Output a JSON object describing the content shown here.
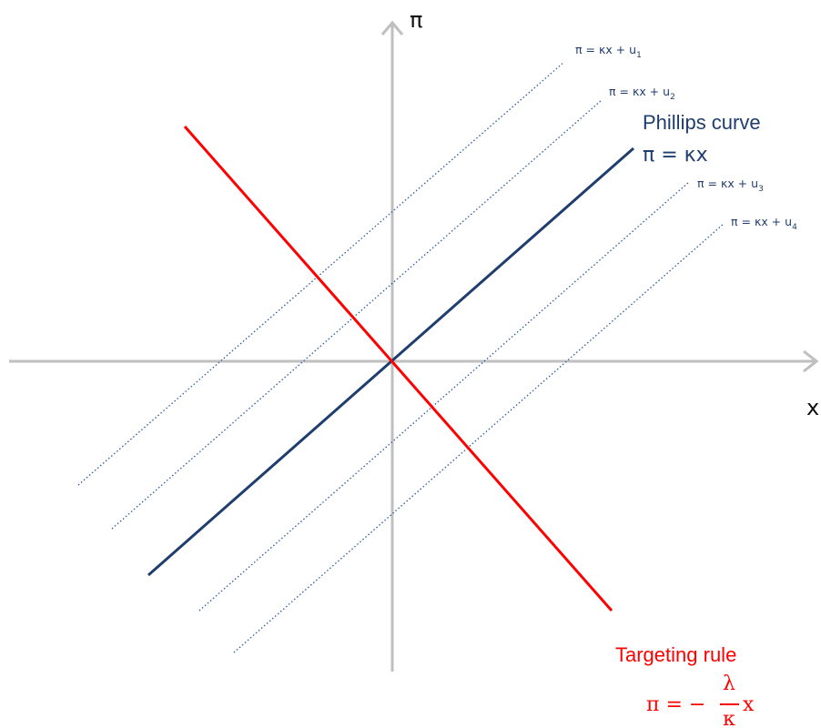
{
  "colors": {
    "axis": "#bfbfbf",
    "phillips": "#1f3d6e",
    "shifted": "#2a5aa0",
    "targeting": "#ff0000",
    "text": "#111111"
  },
  "axes": {
    "x_label": "x",
    "y_label": "π"
  },
  "phillips_curve": {
    "title": "Phillips curve",
    "equation": "π = κx"
  },
  "shifted_curves": [
    {
      "label": "π = κx + u",
      "subscript": "1"
    },
    {
      "label": "π = κx + u",
      "subscript": "2"
    },
    {
      "label": "π = κx + u",
      "subscript": "3"
    },
    {
      "label": "π = κx + u",
      "subscript": "4"
    }
  ],
  "targeting_rule": {
    "title": "Targeting rule",
    "eq_left": "π = −",
    "numerator": "λ",
    "denominator": "κ",
    "eq_right": "x"
  },
  "icons": {
    "x_arrow": "arrow-right-icon",
    "y_arrow": "arrow-up-icon"
  }
}
